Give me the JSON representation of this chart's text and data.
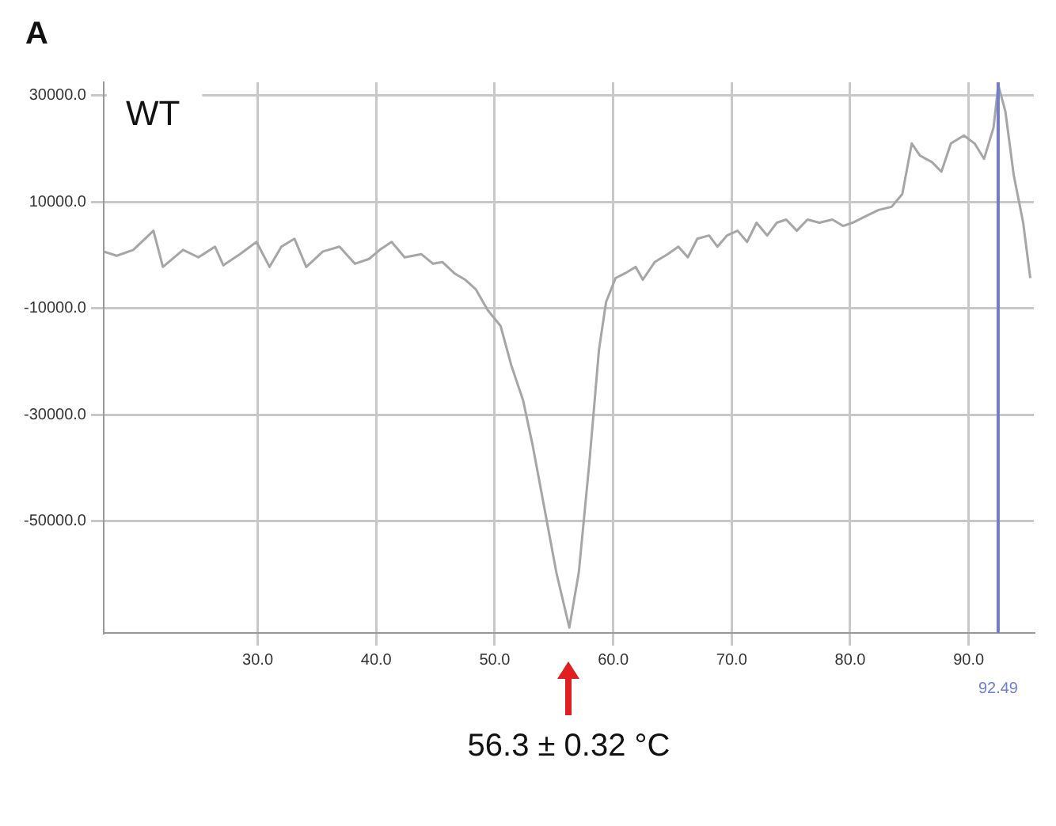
{
  "chart_data": {
    "type": "line",
    "title": "A",
    "x": [
      17.0,
      18.1,
      19.5,
      21.2,
      22.0,
      23.7,
      25.0,
      26.4,
      27.1,
      28.5,
      29.9,
      31.0,
      32.0,
      33.1,
      34.1,
      35.5,
      36.9,
      38.2,
      39.4,
      40.3,
      41.3,
      42.4,
      43.8,
      44.8,
      45.6,
      46.6,
      47.5,
      48.4,
      49.4,
      50.5,
      51.4,
      52.4,
      53.2,
      54.2,
      55.2,
      56.3,
      57.1,
      58.0,
      58.8,
      59.4,
      60.2,
      61.0,
      61.9,
      62.5,
      63.5,
      64.6,
      65.5,
      66.3,
      67.1,
      68.1,
      68.8,
      69.6,
      70.5,
      71.3,
      72.1,
      73.0,
      73.8,
      74.6,
      75.5,
      76.4,
      77.4,
      78.5,
      79.4,
      80.2,
      81.3,
      82.4,
      83.5,
      84.4,
      85.2,
      85.9,
      86.9,
      87.7,
      88.5,
      89.6,
      90.5,
      91.3,
      92.1,
      92.5,
      93.1,
      93.8,
      94.6,
      95.2
    ],
    "series": [
      {
        "color": "#a6a6a6",
        "values": [
          700,
          -100,
          1000,
          4600,
          -2200,
          1000,
          -400,
          1600,
          -1900,
          200,
          2500,
          -2200,
          1600,
          3100,
          -2200,
          700,
          1600,
          -1600,
          -700,
          1000,
          2500,
          -400,
          200,
          -1600,
          -1300,
          -3400,
          -4600,
          -6400,
          -10300,
          -13300,
          -20700,
          -27300,
          -35700,
          -47600,
          -59600,
          -70000,
          -59600,
          -38700,
          -17800,
          -8800,
          -4300,
          -3400,
          -2200,
          -4600,
          -1300,
          200,
          1600,
          -400,
          3100,
          3700,
          1600,
          3700,
          4600,
          2500,
          6100,
          3700,
          6100,
          6700,
          4600,
          6700,
          6100,
          6700,
          5500,
          6100,
          7300,
          8500,
          9100,
          11500,
          21000,
          18700,
          17500,
          15700,
          21000,
          22500,
          21000,
          18100,
          24000,
          32000,
          27000,
          15100,
          6100,
          -4300
        ]
      }
    ],
    "xlim": [
      17,
      95.5
    ],
    "ylim": [
      -71000,
      32500
    ],
    "xticks": [
      {
        "value": 30,
        "label": "30.0"
      },
      {
        "value": 40,
        "label": "40.0"
      },
      {
        "value": 50,
        "label": "50.0"
      },
      {
        "value": 60,
        "label": "60.0"
      },
      {
        "value": 70,
        "label": "70.0"
      },
      {
        "value": 80,
        "label": "80.0"
      },
      {
        "value": 90,
        "label": "90.0"
      }
    ],
    "yticks": [
      {
        "value": -50000,
        "label": "-50000.0"
      },
      {
        "value": -30000,
        "label": "-30000.0"
      },
      {
        "value": -10000,
        "label": "-10000.0"
      },
      {
        "value": 10000,
        "label": "10000.0"
      },
      {
        "value": 30000,
        "label": "30000.0"
      }
    ],
    "ref_lines": [
      {
        "axis": "x",
        "value": 92.49,
        "label": "92.49",
        "color": "#6f7fd0"
      }
    ],
    "annotations": [
      "WT",
      "56.3 ± 0.32 °C"
    ],
    "grid": true,
    "marker": "none",
    "line_style": "solid"
  }
}
